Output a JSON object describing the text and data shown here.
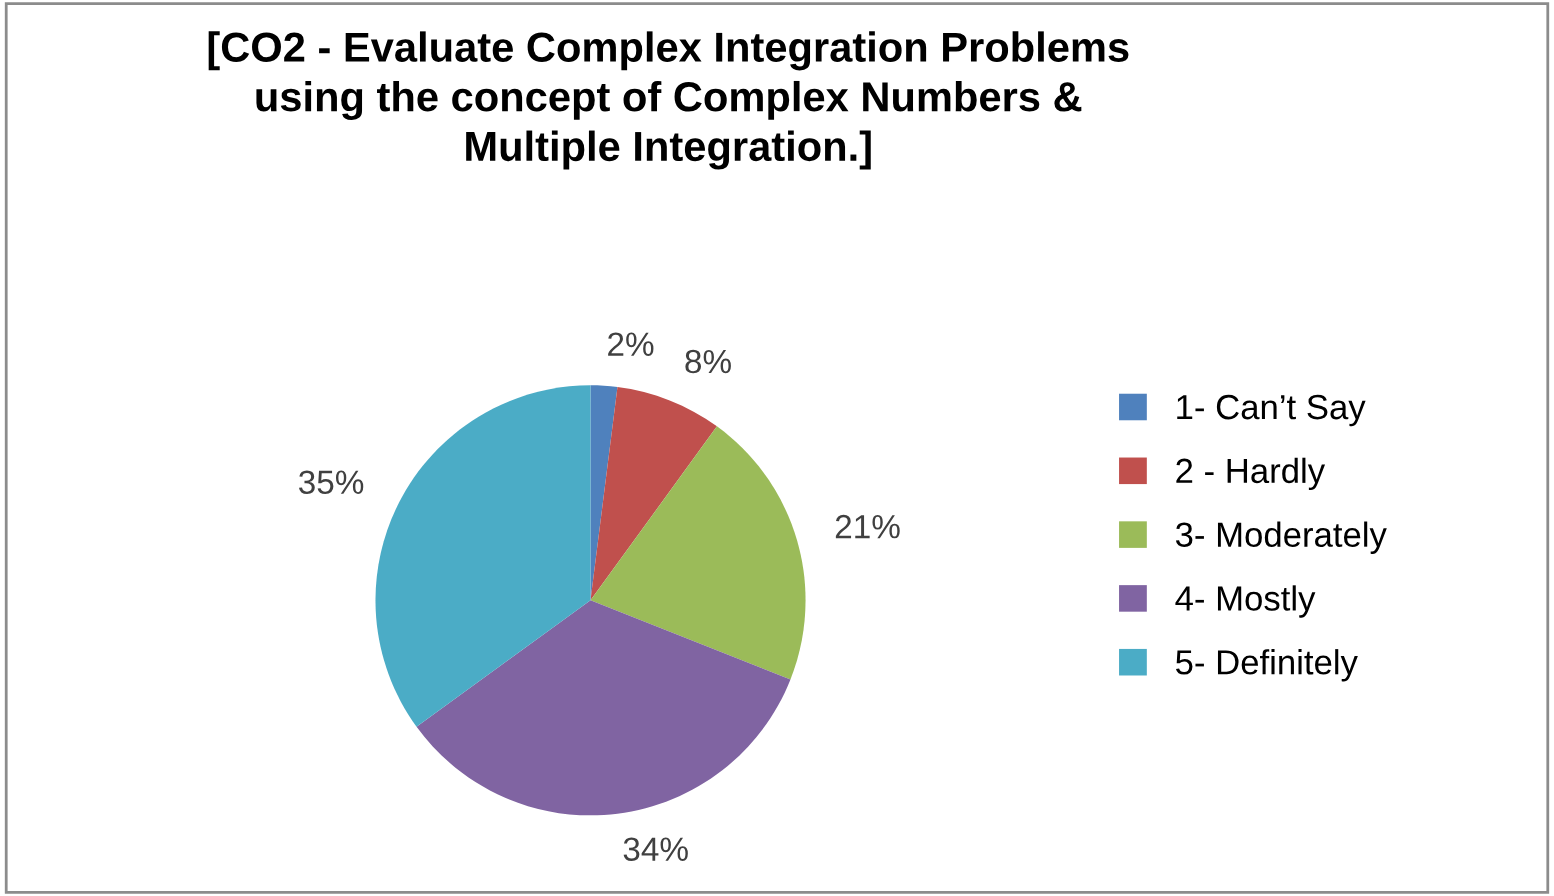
{
  "chart_data": {
    "type": "pie",
    "title": "[CO2 - Evaluate Complex Integration Problems\nusing the concept of Complex Numbers &\nMultiple Integration.]",
    "categories": [
      "1- Can’t Say",
      "2 - Hardly",
      "3- Moderately",
      "4- Mostly",
      "5- Definitely"
    ],
    "values": [
      2,
      8,
      21,
      34,
      35
    ],
    "value_labels": [
      "2%",
      "8%",
      "21%",
      "34%",
      "35%"
    ],
    "colors": [
      "#4f81bd",
      "#c0504d",
      "#9bbb59",
      "#8064a2",
      "#4bacc6"
    ],
    "legend": "right"
  }
}
